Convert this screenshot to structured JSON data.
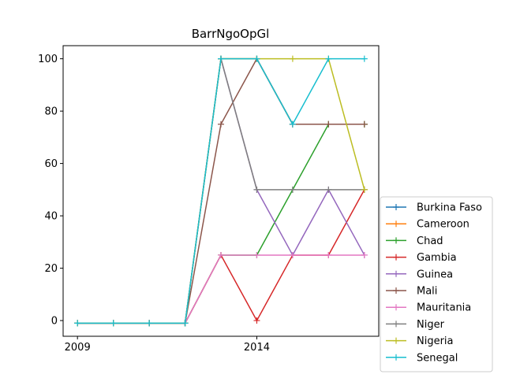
{
  "chart_data": {
    "type": "line",
    "title": "BarrNgoOpGl",
    "xlabel": "",
    "ylabel": "",
    "x": [
      2009,
      2010,
      2011,
      2012,
      2013,
      2014,
      2015,
      2016,
      2017
    ],
    "xlim": [
      2008.6,
      2017.4
    ],
    "ylim": [
      -6,
      105
    ],
    "x_ticks": [
      "2009",
      "2014"
    ],
    "x_tick_values": [
      2009,
      2014
    ],
    "y_ticks": [
      0,
      20,
      40,
      60,
      80,
      100
    ],
    "y_tick_labels": [
      "0",
      "20",
      "40",
      "60",
      "80",
      "100"
    ],
    "grid": false,
    "legend_position": "lower-right-outside",
    "series": [
      {
        "name": "Burkina Faso",
        "color": "#1f77b4",
        "values": [
          -1,
          -1,
          -1,
          -1,
          100,
          100,
          75,
          75,
          75
        ]
      },
      {
        "name": "Cameroon",
        "color": "#ff7f0e",
        "values": [
          -1,
          -1,
          -1,
          -1,
          100,
          100,
          75,
          75,
          75
        ]
      },
      {
        "name": "Chad",
        "color": "#2ca02c",
        "values": [
          -1,
          -1,
          -1,
          -1,
          25,
          25,
          50,
          75,
          75
        ]
      },
      {
        "name": "Gambia",
        "color": "#d62728",
        "values": [
          -1,
          -1,
          -1,
          -1,
          25,
          0,
          25,
          25,
          50
        ]
      },
      {
        "name": "Guinea",
        "color": "#9467bd",
        "values": [
          -1,
          -1,
          -1,
          -1,
          100,
          50,
          25,
          50,
          25
        ]
      },
      {
        "name": "Mali",
        "color": "#8c564b",
        "values": [
          -1,
          -1,
          -1,
          -1,
          75,
          100,
          75,
          75,
          75
        ]
      },
      {
        "name": "Mauritania",
        "color": "#e377c2",
        "values": [
          -1,
          -1,
          -1,
          -1,
          25,
          25,
          25,
          25,
          25
        ]
      },
      {
        "name": "Niger",
        "color": "#7f7f7f",
        "values": [
          -1,
          -1,
          -1,
          -1,
          100,
          50,
          50,
          50,
          50
        ]
      },
      {
        "name": "Nigeria",
        "color": "#bcbd22",
        "values": [
          -1,
          -1,
          -1,
          -1,
          100,
          100,
          100,
          100,
          50
        ]
      },
      {
        "name": "Senegal",
        "color": "#17becf",
        "values": [
          -1,
          -1,
          -1,
          -1,
          100,
          100,
          75,
          100,
          100
        ]
      }
    ]
  }
}
